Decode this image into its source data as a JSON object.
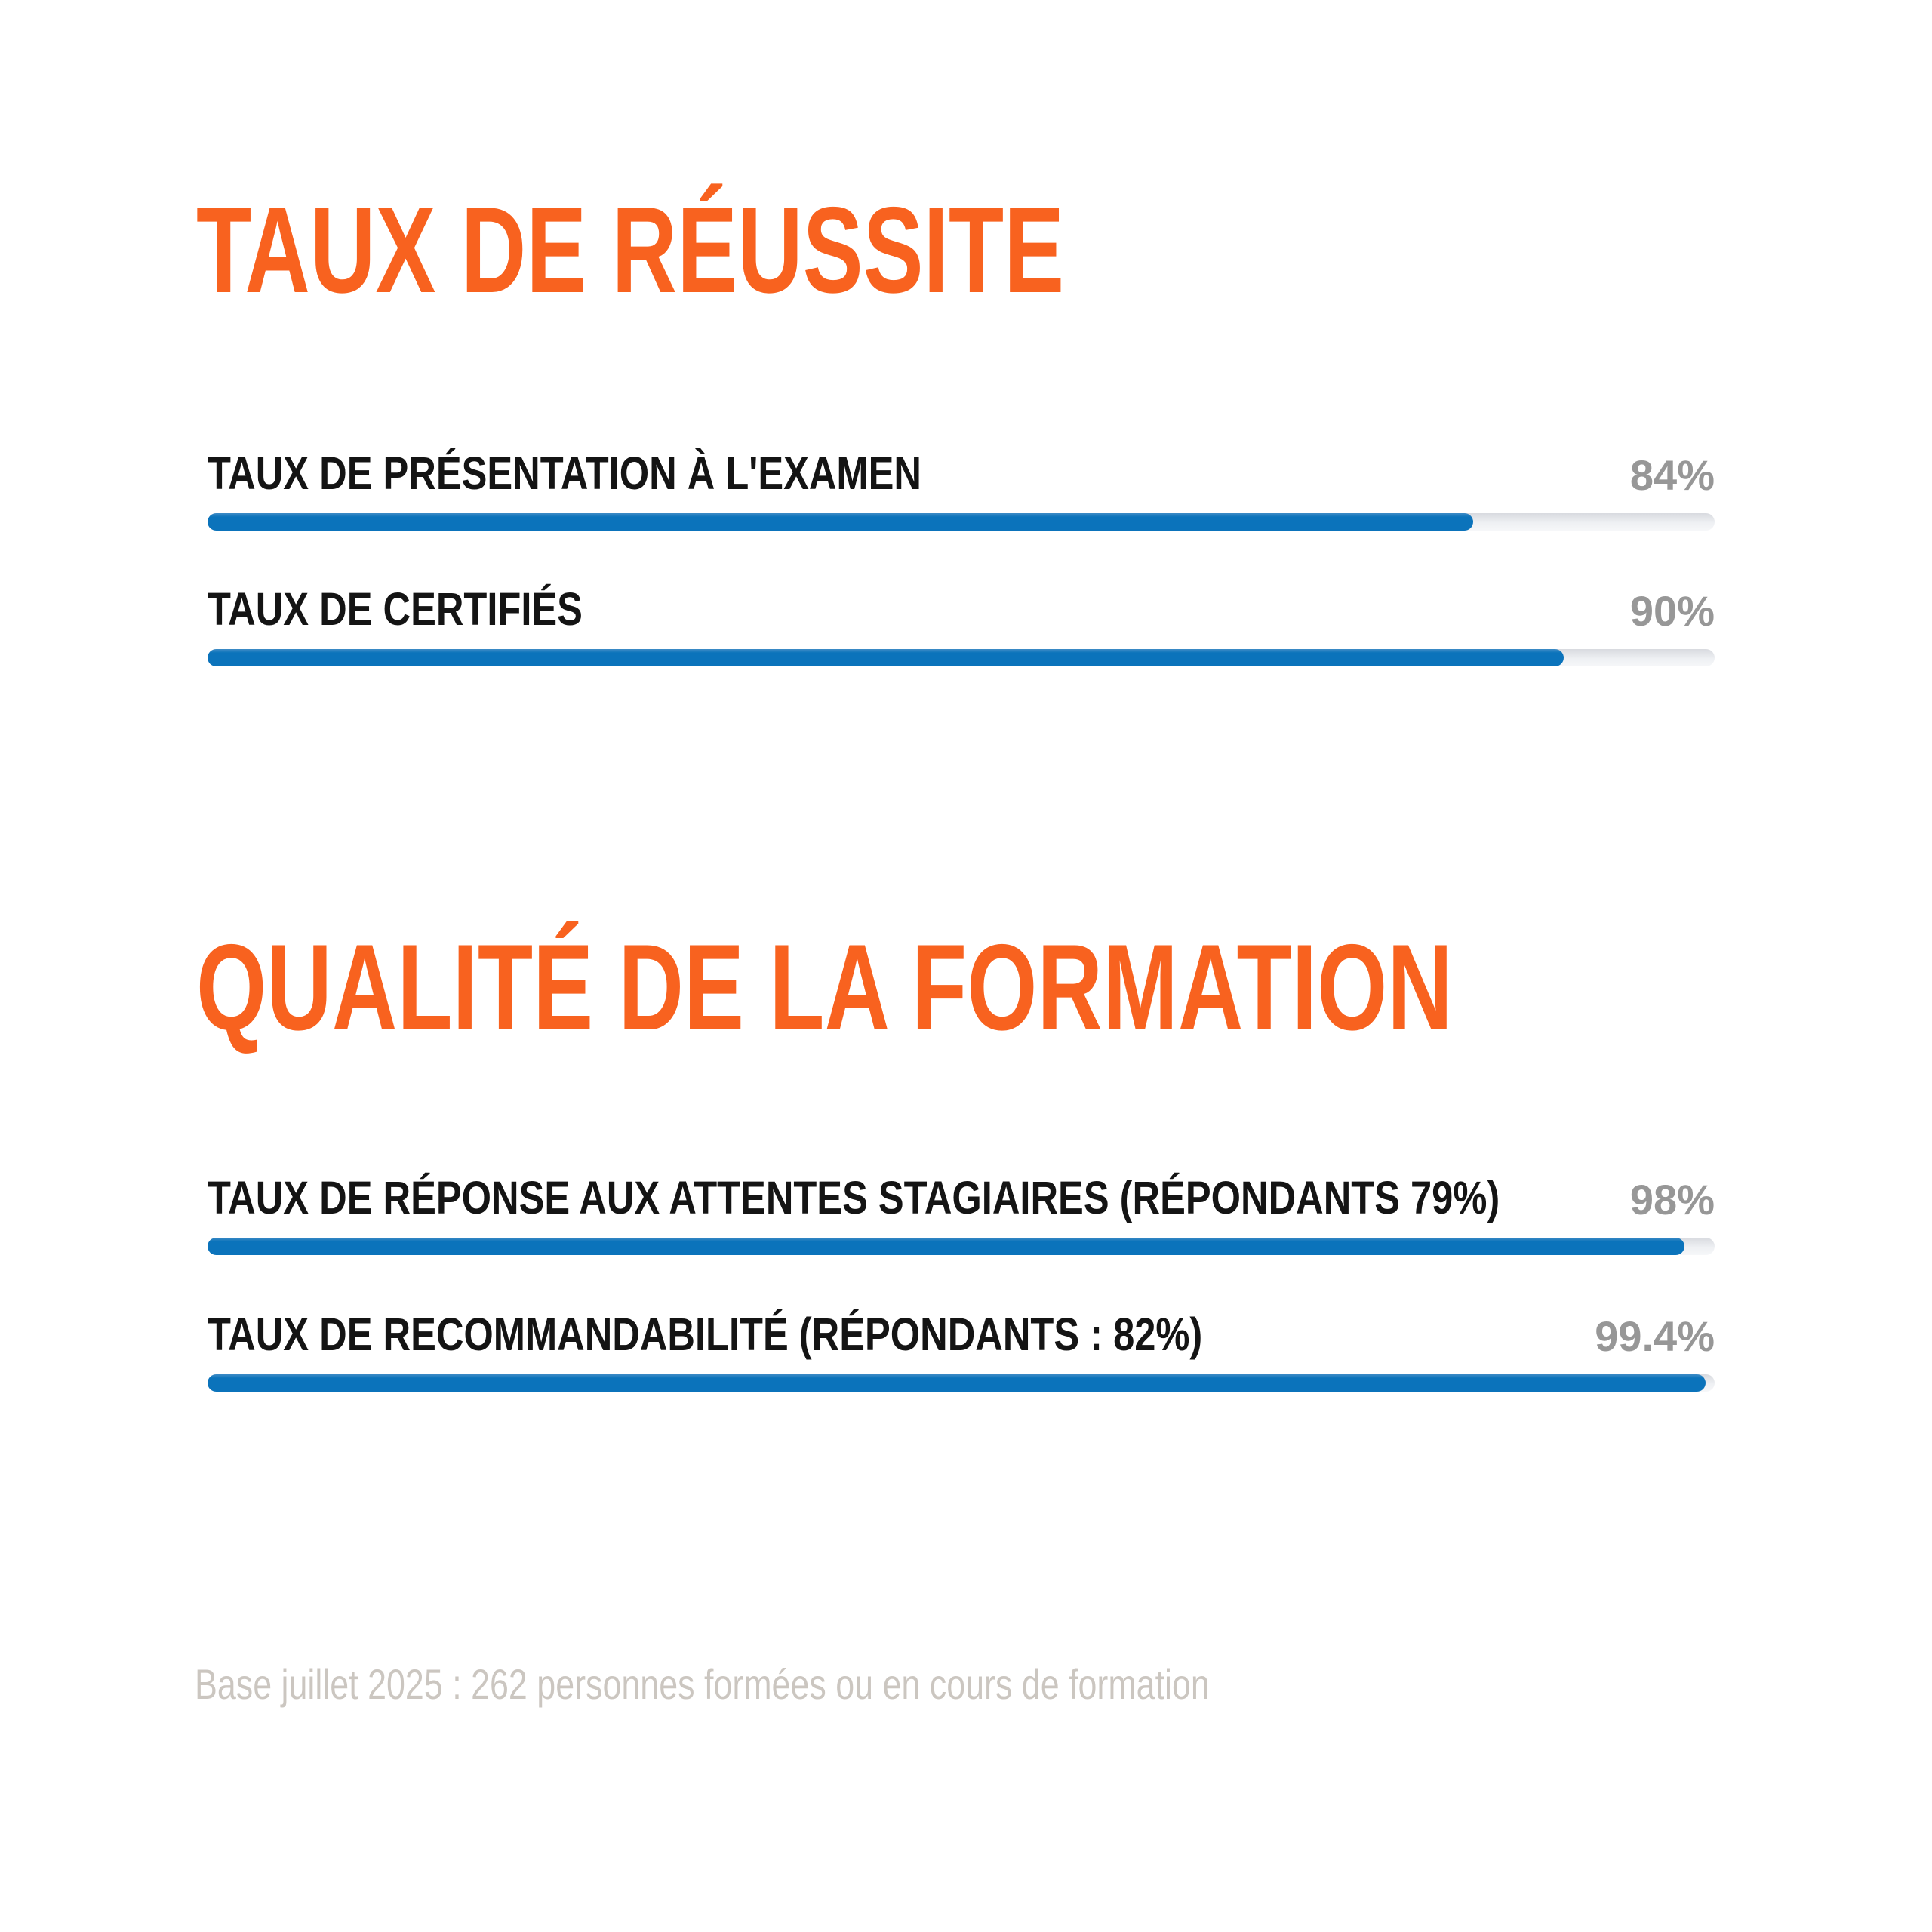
{
  "colors": {
    "accent_orange": "#f8621f",
    "bar_blue": "#0b73bb",
    "track_gray": "#eef0f3",
    "label_black": "#141414",
    "value_gray": "#979797",
    "footer_gray": "#cbc6c0"
  },
  "sections": [
    {
      "title": "TAUX DE RÉUSSITE",
      "rows": [
        {
          "label": "TAUX DE PRÉSENTATION À L'EXAMEN",
          "value_label": "84%",
          "value_percent": 84
        },
        {
          "label": "TAUX DE CERTIFIÉS",
          "value_label": "90%",
          "value_percent": 90
        }
      ]
    },
    {
      "title": "QUALITÉ DE LA FORMATION",
      "rows": [
        {
          "label": "TAUX DE RÉPONSE AUX ATTENTES STAGIAIRES (RÉPONDANTS 79%)",
          "value_label": "98%",
          "value_percent": 98
        },
        {
          "label": "TAUX DE RECOMMANDABILITÉ (RÉPONDANTS : 82%)",
          "value_label": "99.4%",
          "value_percent": 99.4
        }
      ]
    }
  ],
  "footer": {
    "note": "Base juillet 2025 : 262 personnes formées ou en cours de formation"
  },
  "chart_data": {
    "type": "bar",
    "orientation": "horizontal",
    "unit": "%",
    "xlim": [
      0,
      100
    ],
    "grid": false,
    "legend": "none",
    "bar_color": "#0b73bb",
    "track_color": "#eef0f3",
    "groups": [
      {
        "title": "TAUX DE RÉUSSITE",
        "categories": [
          "TAUX DE PRÉSENTATION À L'EXAMEN",
          "TAUX DE CERTIFIÉS"
        ],
        "values": [
          84,
          90
        ],
        "value_labels": [
          "84%",
          "90%"
        ]
      },
      {
        "title": "QUALITÉ DE LA FORMATION",
        "categories": [
          "TAUX DE RÉPONSE AUX ATTENTES STAGIAIRES (RÉPONDANTS 79%)",
          "TAUX DE RECOMMANDABILITÉ (RÉPONDANTS : 82%)"
        ],
        "values": [
          98,
          99.4
        ],
        "value_labels": [
          "98%",
          "99.4%"
        ]
      }
    ],
    "annotations": [
      "Base juillet 2025 : 262 personnes formées ou en cours de formation"
    ]
  }
}
